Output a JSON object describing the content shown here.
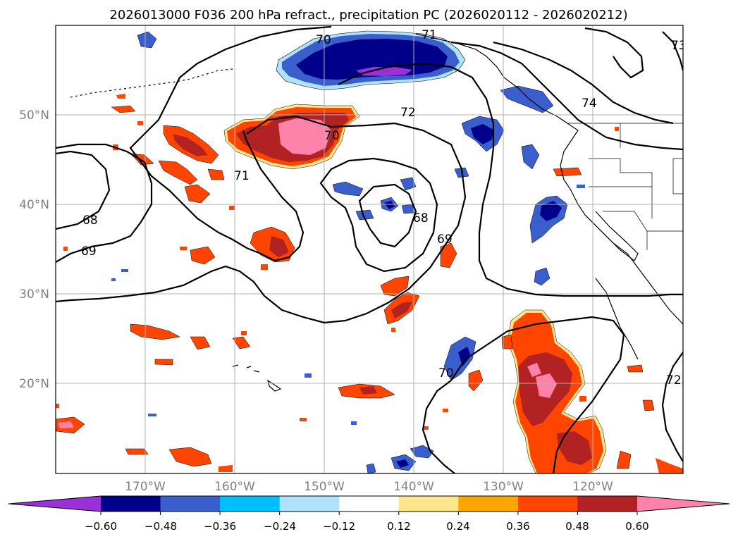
{
  "title": "2026013000 F036 200 hPa refract., precipitation PC (2026020112 - 2026020212)",
  "axes": {
    "lat_labels": [
      "50°N",
      "40°N",
      "30°N",
      "20°N"
    ],
    "lon_labels": [
      "170°W",
      "160°W",
      "150°W",
      "140°W",
      "130°W",
      "120°W"
    ],
    "label_color": "#808080"
  },
  "colorbar": {
    "ticks": [
      "−0.60",
      "−0.48",
      "−0.36",
      "−0.24",
      "−0.12",
      "0.12",
      "0.24",
      "0.36",
      "0.48",
      "0.60"
    ],
    "colors": [
      "#9b30d9",
      "#00008b",
      "#3a5fcd",
      "#00bfff",
      "#b0e2ff",
      "#ffffff",
      "#ffe68c",
      "#ffa500",
      "#ff4500",
      "#b22222",
      "#ff82ab"
    ]
  },
  "contour_labels": [
    {
      "text": "70"
    },
    {
      "text": "71"
    },
    {
      "text": "72"
    },
    {
      "text": "74"
    },
    {
      "text": "73"
    },
    {
      "text": "70"
    },
    {
      "text": "71"
    },
    {
      "text": "68"
    },
    {
      "text": "69"
    },
    {
      "text": "68"
    },
    {
      "text": "69"
    },
    {
      "text": "70"
    },
    {
      "text": "72"
    }
  ]
}
